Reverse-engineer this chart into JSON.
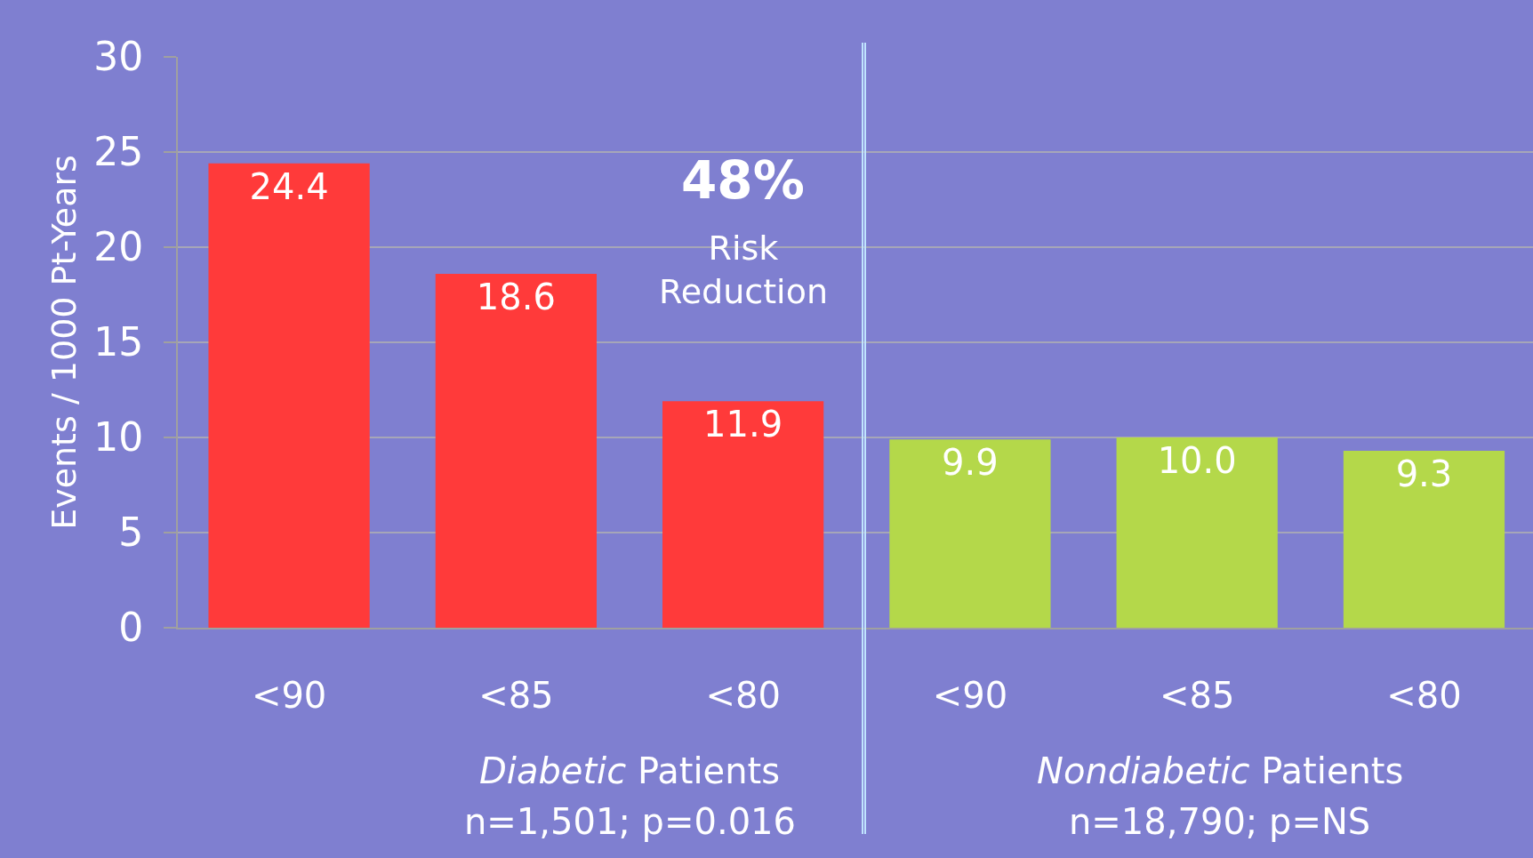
{
  "chart_data": {
    "type": "bar",
    "ylabel": "Events / 1000 Pt-Years",
    "categories": [
      "<90",
      "<85",
      "<80",
      "<90",
      "<85",
      "<80"
    ],
    "values": [
      24.4,
      18.6,
      11.9,
      9.9,
      10.0,
      9.3
    ],
    "colors": [
      "#ff3a3a",
      "#ff3a3a",
      "#ff3a3a",
      "#b4d84a",
      "#b4d84a",
      "#b4d84a"
    ],
    "ylim": [
      0,
      30
    ],
    "yticks": [
      0,
      5,
      10,
      15,
      20,
      25,
      30
    ],
    "grid": "y",
    "legend": false,
    "value_labels": [
      "24.4",
      "18.6",
      "11.9",
      "9.9",
      "10.0",
      "9.3"
    ],
    "annotations": [
      "48%",
      "Risk Reduction",
      "Diabetic Patients",
      "n=1,501; p=0.016",
      "Nondiabetic Patients",
      "n=18,790; p=NS"
    ]
  }
}
